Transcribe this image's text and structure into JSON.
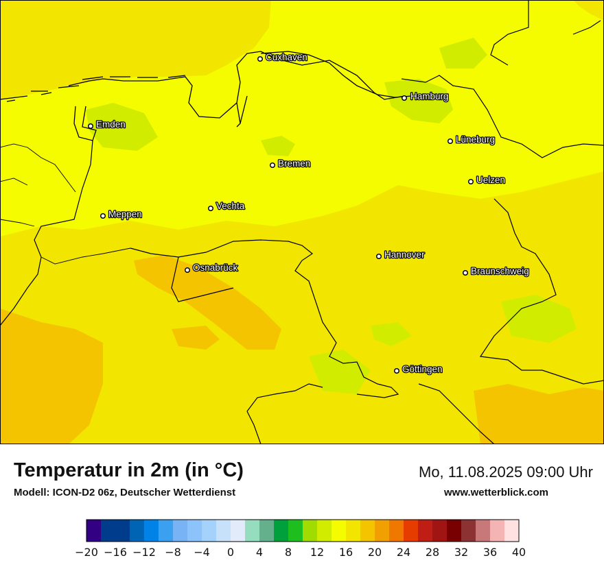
{
  "map": {
    "cities": [
      {
        "name": "Cuxhaven"
      },
      {
        "name": "Hamburg"
      },
      {
        "name": "Emden"
      },
      {
        "name": "Lüneburg"
      },
      {
        "name": "Bremen"
      },
      {
        "name": "Uelzen"
      },
      {
        "name": "Meppen"
      },
      {
        "name": "Vechta"
      },
      {
        "name": "Hannover"
      },
      {
        "name": "Osnabrück"
      },
      {
        "name": "Braunschweig"
      },
      {
        "name": "Göttingen"
      }
    ],
    "region_colors": {
      "warm_16_18": "#f2e500",
      "warmer_18_20": "#f5c400",
      "mild_14_16": "#f5fc00",
      "cool_12_14": "#d2ec00"
    }
  },
  "footer": {
    "title": "Temperatur in 2m (in °C)",
    "model": "Modell: ICON-D2 06z, Deutscher Wetterdienst",
    "datetime": "Mo, 11.08.2025 09:00 Uhr",
    "website": "www.wetterblick.com"
  },
  "colorbar": {
    "min": -20,
    "max": 40,
    "step": 2,
    "colors": [
      "#320082",
      "#003c8c",
      "#003c8c",
      "#0064b4",
      "#0082e6",
      "#3ca0f0",
      "#78b4f5",
      "#8cc3fa",
      "#a5d2fa",
      "#c8e1fa",
      "#e1ebfa",
      "#96dcbe",
      "#64af8c",
      "#00a03c",
      "#1ebe1e",
      "#a0dc00",
      "#d2ec00",
      "#f5fc00",
      "#f2e500",
      "#f5c400",
      "#f0a000",
      "#f07800",
      "#e63c00",
      "#be1e14",
      "#a01414",
      "#780000",
      "#8c3232",
      "#c87878",
      "#f5b4b4",
      "#ffe1e1"
    ],
    "tick_labels": [
      "−20",
      "−16",
      "−12",
      "−8",
      "−4",
      "0",
      "4",
      "8",
      "12",
      "16",
      "20",
      "24",
      "28",
      "32",
      "36",
      "40"
    ]
  }
}
